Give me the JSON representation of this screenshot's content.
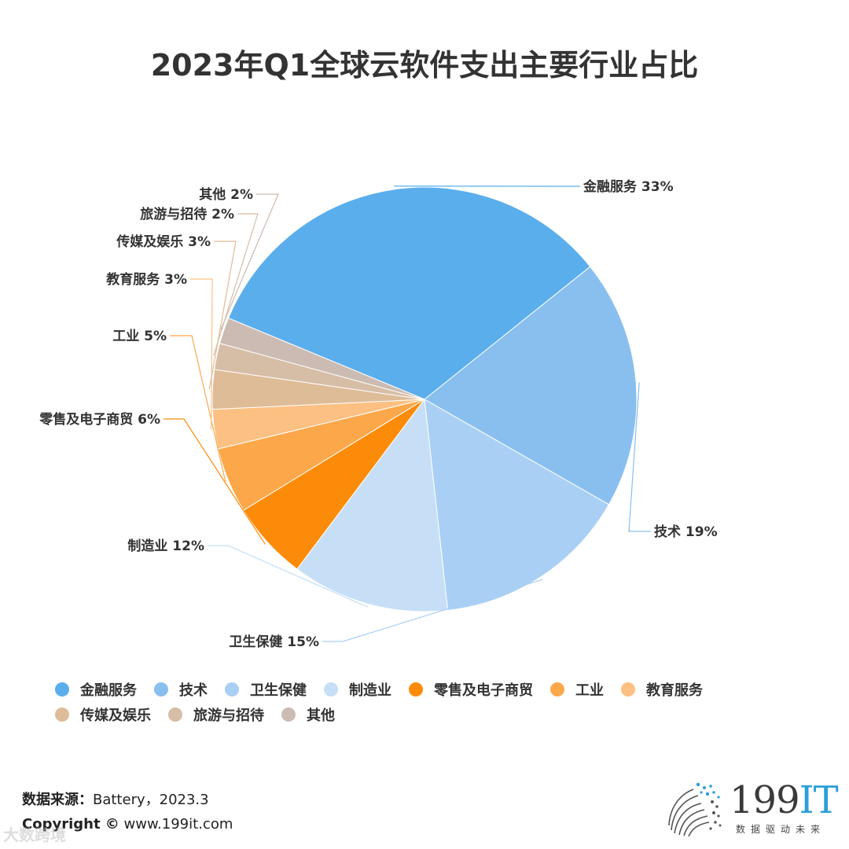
{
  "title": "2023年Q1全球云软件支出主要行业占比",
  "chart_data": {
    "type": "pie",
    "title": "2023年Q1全球云软件支出主要行业占比",
    "legend_position": "bottom",
    "slices": [
      {
        "label": "金融服务",
        "value": 33,
        "display": "金融服务 33%",
        "color": "#5baeec"
      },
      {
        "label": "技术",
        "value": 19,
        "display": "技术 19%",
        "color": "#89bfef"
      },
      {
        "label": "卫生保健",
        "value": 15,
        "display": "卫生保健 15%",
        "color": "#a9cff5"
      },
      {
        "label": "制造业",
        "value": 12,
        "display": "制造业 12%",
        "color": "#c6dff7"
      },
      {
        "label": "零售及电子商贸",
        "value": 6,
        "display": "零售及电子商贸 6%",
        "color": "#fd8b0a"
      },
      {
        "label": "工业",
        "value": 5,
        "display": "工业 5%",
        "color": "#fca84a"
      },
      {
        "label": "教育服务",
        "value": 3,
        "display": "教育服务 3%",
        "color": "#fcc082"
      },
      {
        "label": "传媒及娱乐",
        "value": 3,
        "display": "传媒及娱乐 3%",
        "color": "#dfbc98"
      },
      {
        "label": "旅游与招待",
        "value": 2,
        "display": "旅游与招待 2%",
        "color": "#d6bda6"
      },
      {
        "label": "其他",
        "value": 2,
        "display": "其他 2%",
        "color": "#ccbbb2"
      }
    ]
  },
  "footer": {
    "source_label": "数据来源：",
    "source_value": "Battery，2023.3",
    "copyright_label": "Copyright ©",
    "copyright_value": "www.199it.com",
    "watermark": "大数跨境"
  },
  "logo": {
    "main": "199",
    "accent": "IT",
    "tagline": "数据驱动未来",
    "accent_color": "#2a9fd6"
  }
}
